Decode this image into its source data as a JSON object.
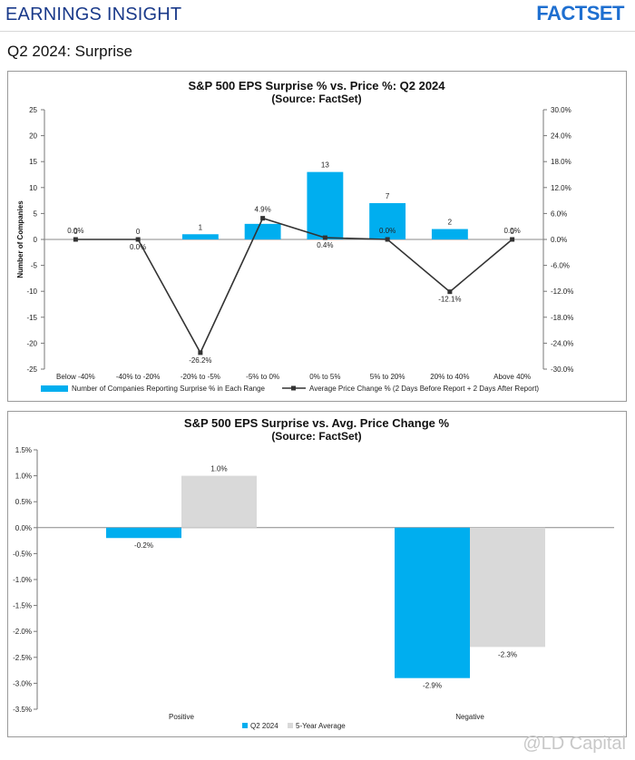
{
  "header": {
    "title": "EARNINGS INSIGHT",
    "logo_text": "FACTSET",
    "subtitle": "Q2 2024: Surprise"
  },
  "watermark": "@LD Capital",
  "colors": {
    "bar_blue": "#00AEEF",
    "bar_gray": "#D9D9D9",
    "line": "#333333",
    "brand": "#1E6FD0"
  },
  "chart_data": [
    {
      "type": "bar",
      "title": "S&P 500 EPS Surprise % vs. Price %: Q2 2024",
      "subtitle": "(Source: FactSet)",
      "ylabel": "Number of Companies",
      "ylim": [
        -25,
        25
      ],
      "yticks": [
        "25",
        "20",
        "15",
        "10",
        "5",
        "0",
        "-5",
        "-10",
        "-15",
        "-20",
        "-25"
      ],
      "y2lim": [
        -30,
        30
      ],
      "y2ticks": [
        "30.0%",
        "24.0%",
        "18.0%",
        "12.0%",
        "6.0%",
        "0.0%",
        "-6.0%",
        "-12.0%",
        "-18.0%",
        "-24.0%",
        "-30.0%"
      ],
      "categories": [
        "Below -40%",
        "-40% to -20%",
        "-20% to -5%",
        "-5% to 0%",
        "0% to 5%",
        "5% to 20%",
        "20% to 40%",
        "Above 40%"
      ],
      "series": [
        {
          "name": "Number of Companies Reporting Surprise % in Each Range",
          "kind": "bar",
          "axis": "left",
          "values": [
            0,
            0,
            1,
            3,
            13,
            7,
            2,
            0
          ],
          "labels": [
            "0",
            "0",
            "1",
            "",
            "13",
            "7",
            "2",
            "0"
          ]
        },
        {
          "name": "Average Price Change % (2 Days Before Report + 2 Days After Report)",
          "kind": "line",
          "axis": "right",
          "values": [
            0.0,
            0.0,
            -26.2,
            4.9,
            0.4,
            0.0,
            -12.1,
            0.0
          ],
          "labels": [
            "0.0%",
            "0.0%",
            "-26.2%",
            "4.9%",
            "0.4%",
            "0.0%",
            "-12.1%",
            "0.0%"
          ]
        }
      ],
      "grid": false,
      "legend": "bottom"
    },
    {
      "type": "bar",
      "title": "S&P 500 EPS Surprise vs. Avg. Price Change %",
      "subtitle": "(Source: FactSet)",
      "ylim": [
        -3.5,
        1.5
      ],
      "yticks": [
        "1.5%",
        "1.0%",
        "0.5%",
        "0.0%",
        "-0.5%",
        "-1.0%",
        "-1.5%",
        "-2.0%",
        "-2.5%",
        "-3.0%",
        "-3.5%"
      ],
      "categories": [
        "Positive",
        "Negative"
      ],
      "series": [
        {
          "name": "Q2 2024",
          "values": [
            -0.2,
            -2.9
          ],
          "labels": [
            "-0.2%",
            "-2.9%"
          ]
        },
        {
          "name": "5-Year Average",
          "values": [
            1.0,
            -2.3
          ],
          "labels": [
            "1.0%",
            "-2.3%"
          ]
        }
      ],
      "grid": false,
      "legend": "bottom"
    }
  ]
}
